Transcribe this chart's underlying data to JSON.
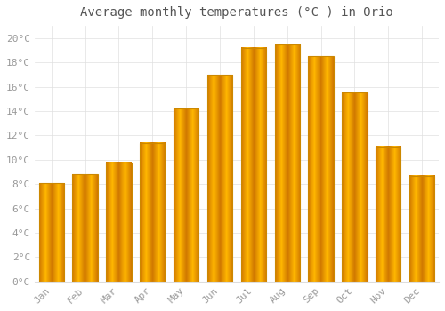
{
  "title": "Average monthly temperatures (°C ) in Orio",
  "months": [
    "Jan",
    "Feb",
    "Mar",
    "Apr",
    "May",
    "Jun",
    "Jul",
    "Aug",
    "Sep",
    "Oct",
    "Nov",
    "Dec"
  ],
  "values": [
    8.1,
    8.8,
    9.8,
    11.4,
    14.2,
    17.0,
    19.2,
    19.5,
    18.5,
    15.5,
    11.1,
    8.7
  ],
  "bar_color_center": "#FFB700",
  "bar_color_edge": "#E08000",
  "background_color": "#FFFFFF",
  "plot_bg_color": "#FFFFFF",
  "grid_color": "#E0E0E0",
  "ylim": [
    0,
    21
  ],
  "yticks": [
    0,
    2,
    4,
    6,
    8,
    10,
    12,
    14,
    16,
    18,
    20
  ],
  "title_fontsize": 10,
  "tick_fontsize": 8,
  "tick_label_color": "#999999",
  "title_color": "#555555",
  "bar_width": 0.75
}
